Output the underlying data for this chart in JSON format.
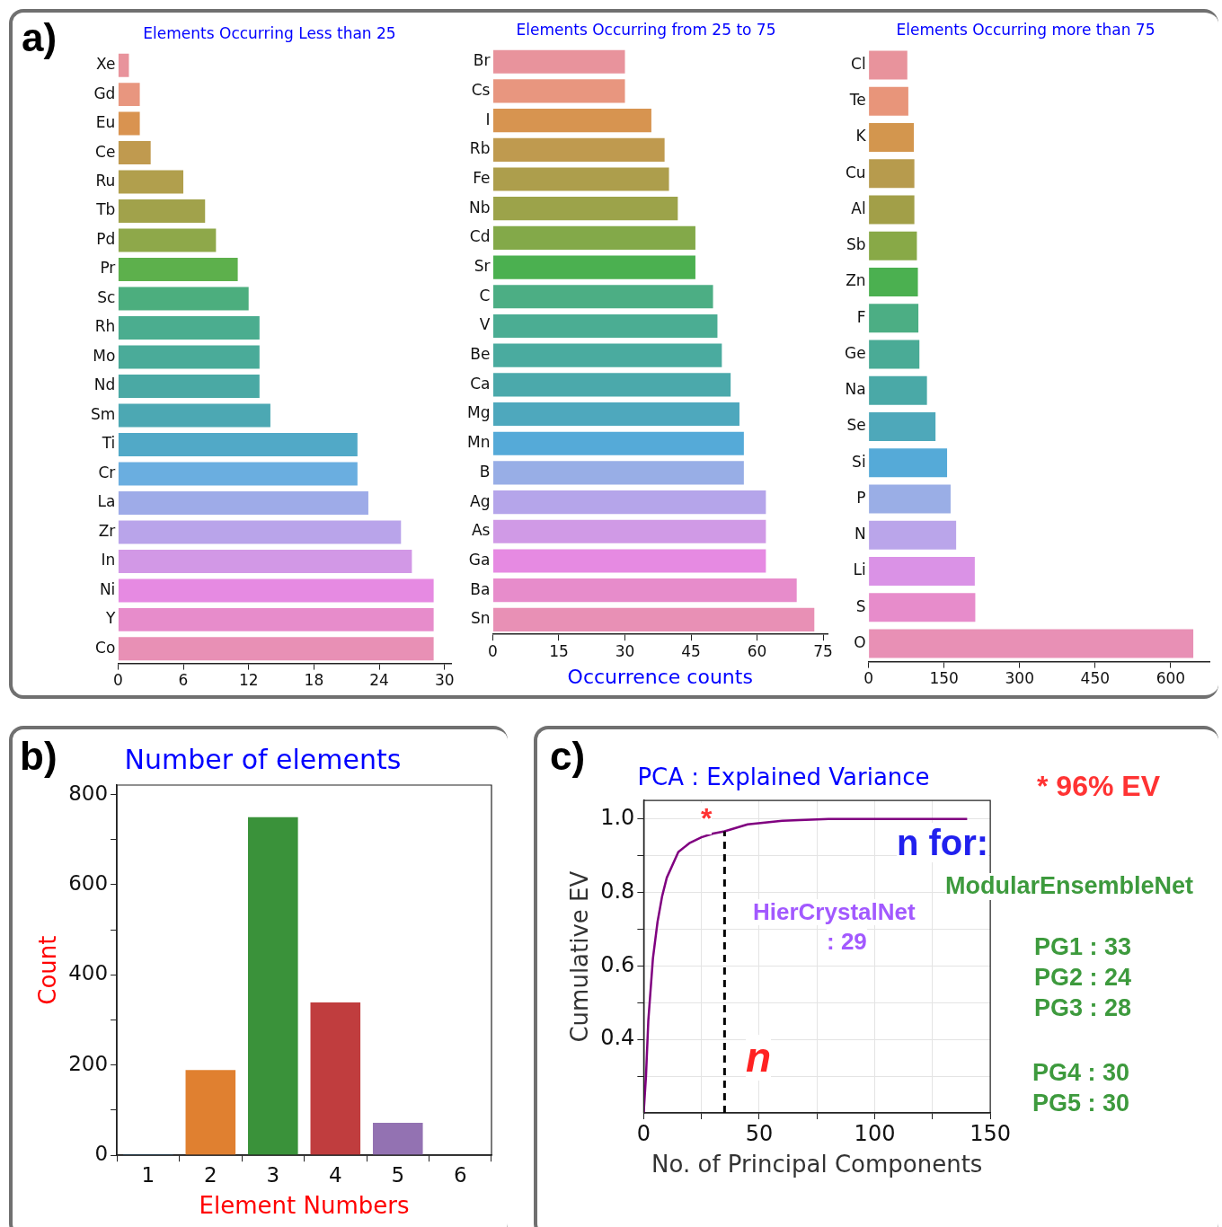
{
  "chart_data": [
    {
      "type": "bar",
      "orientation": "horizontal",
      "title": "Elements Occurring Less than 25",
      "categories": [
        "Xe",
        "Gd",
        "Eu",
        "Ce",
        "Ru",
        "Tb",
        "Pd",
        "Pr",
        "Sc",
        "Rh",
        "Mo",
        "Nd",
        "Sm",
        "Ti",
        "Cr",
        "La",
        "Zr",
        "In",
        "Ni",
        "Y",
        "Co"
      ],
      "values": [
        1,
        2,
        2,
        3,
        6,
        8,
        9,
        11,
        12,
        13,
        13,
        13,
        14,
        22,
        22,
        23,
        26,
        27,
        29,
        29,
        29
      ],
      "colors": [
        "#e8939c",
        "#e8967f",
        "#d99350",
        "#c09a4f",
        "#b19f4d",
        "#a1a24b",
        "#8ea84a",
        "#5db04c",
        "#4cae7e",
        "#4bad8f",
        "#4aab99",
        "#4aa9a4",
        "#4ca8b3",
        "#51a9c7",
        "#6aaee0",
        "#9eabe8",
        "#b9a4ea",
        "#d298e6",
        "#e68ae2",
        "#e78ccb",
        "#e890b5"
      ],
      "xlim": [
        0,
        30.6
      ],
      "xticks": [
        0,
        6,
        12,
        18,
        24,
        30
      ],
      "annotations": [
        "a)"
      ]
    },
    {
      "type": "bar",
      "orientation": "horizontal",
      "title": "Elements Occurring from 25 to 75",
      "xlabel": "Occurrence counts",
      "categories": [
        "Br",
        "Cs",
        "I",
        "Rb",
        "Fe",
        "Nb",
        "Cd",
        "Sr",
        "C",
        "V",
        "Be",
        "Ca",
        "Mg",
        "Mn",
        "B",
        "Ag",
        "As",
        "Ga",
        "Ba",
        "Sn"
      ],
      "values": [
        30,
        30,
        36,
        39,
        40,
        42,
        46,
        46,
        50,
        51,
        52,
        54,
        56,
        57,
        57,
        62,
        62,
        62,
        69,
        73
      ],
      "colors": [
        "#e8939c",
        "#e8967f",
        "#d79450",
        "#bf9a4f",
        "#ad9e4c",
        "#9ca34a",
        "#83a949",
        "#4bb050",
        "#4cae84",
        "#4bad93",
        "#4aab9f",
        "#4ba9ab",
        "#4ea8bd",
        "#55aad8",
        "#98aee6",
        "#b5a5ea",
        "#d09ae6",
        "#e68ae2",
        "#e78ccb",
        "#e890b5"
      ],
      "xlim": [
        0,
        76
      ],
      "xticks": [
        0,
        15,
        30,
        45,
        60,
        75
      ]
    },
    {
      "type": "bar",
      "orientation": "horizontal",
      "title": "Elements Occurring more than 75",
      "categories": [
        "Cl",
        "Te",
        "K",
        "Cu",
        "Al",
        "Sb",
        "Zn",
        "F",
        "Ge",
        "Na",
        "Se",
        "Si",
        "P",
        "N",
        "Li",
        "S",
        "O"
      ],
      "values": [
        77,
        79,
        90,
        91,
        91,
        96,
        98,
        99,
        101,
        116,
        133,
        156,
        163,
        174,
        211,
        212,
        645
      ],
      "colors": [
        "#e8939c",
        "#e8957a",
        "#d3964e",
        "#b79b4d",
        "#a29f48",
        "#88a947",
        "#4bb050",
        "#4cae84",
        "#4aab96",
        "#4aa9a7",
        "#4ea8ba",
        "#55aad8",
        "#9aaee6",
        "#baa5ea",
        "#da92e6",
        "#e78ccb",
        "#e890b5"
      ],
      "xlim": [
        0,
        677
      ],
      "xticks": [
        0,
        150,
        300,
        450,
        600
      ]
    },
    {
      "type": "bar",
      "title": "Number of elements",
      "xlabel": "Element Numbers",
      "ylabel": "Count",
      "categories": [
        "1",
        "2",
        "3",
        "4",
        "5",
        "6"
      ],
      "values": [
        2,
        189,
        750,
        339,
        72,
        1
      ],
      "colors": [
        "#1f77b4",
        "#e08030",
        "#3a923a",
        "#c03d3e",
        "#9372b2",
        "#845b53"
      ],
      "ylim": [
        0,
        821
      ],
      "yticks": [
        0,
        {
          "value": 100,
          "label": null
        },
        200,
        {
          "value": 300,
          "label": null
        },
        400,
        {
          "value": 500,
          "label": null
        },
        600,
        {
          "value": 700,
          "label": null
        },
        800
      ],
      "annotations": [
        "b)"
      ]
    },
    {
      "type": "line",
      "title": "PCA : Explained Variance",
      "xlabel": "No. of Principal Components",
      "ylabel": "Cumulative EV",
      "color": "#800080",
      "x": [
        0,
        1,
        2,
        4,
        6,
        8,
        10,
        15,
        20,
        25,
        30,
        35,
        45,
        60,
        80,
        140
      ],
      "values": [
        0.2,
        0.3,
        0.45,
        0.62,
        0.72,
        0.79,
        0.84,
        0.91,
        0.935,
        0.95,
        0.96,
        0.966,
        0.985,
        0.995,
        1.0,
        1.0
      ],
      "xlim": [
        0,
        150
      ],
      "xticks": [
        0,
        {
          "value": 25,
          "label": null
        },
        50,
        {
          "value": 75,
          "label": null
        },
        100,
        {
          "value": 125,
          "label": null
        },
        150
      ],
      "ylim": [
        0.2,
        1.05
      ],
      "yticks": [
        {
          "value": 0.3,
          "label": null
        },
        0.4,
        {
          "value": 0.5,
          "label": null
        },
        0.6,
        {
          "value": 0.7,
          "label": null
        },
        0.8,
        {
          "value": 0.9,
          "label": null
        },
        {
          "value": 1,
          "label": "1.0"
        }
      ],
      "grid": true,
      "ref_lines": [
        {
          "axis": "x",
          "value": 35,
          "color": "#000000",
          "line_style": "dashed"
        }
      ],
      "annotations": [
        "c)",
        "*",
        "* 96% EV",
        "n for:",
        "ModularEnsembleNet",
        "HierCrystalNet",
        ": 29",
        "PG1 : 33",
        "PG2 : 24",
        "PG3 : 28",
        "PG4 : 30",
        "PG5 : 30",
        "n"
      ]
    }
  ]
}
